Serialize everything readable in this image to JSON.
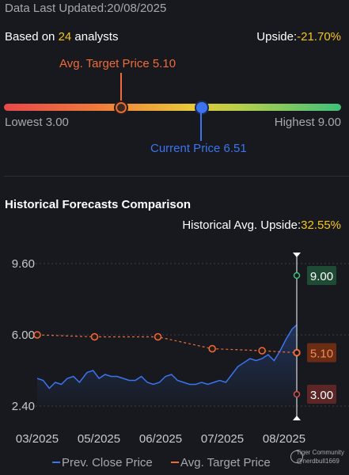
{
  "header": {
    "updated_label": "Data Last Updated:",
    "updated_date": "20/08/2025",
    "analysts_prefix": "Based on ",
    "analysts_count": "24",
    "analysts_suffix": " analysts",
    "upside_label": "Upside:",
    "upside_value": "-21.70%"
  },
  "range": {
    "avg_target_label": "Avg. Target Price 5.10",
    "lowest_label": "Lowest 3.00",
    "highest_label": "Highest 9.00",
    "current_label": "Current Price 6.51",
    "low": 3.0,
    "high": 9.0,
    "avg_target": 5.1,
    "current": 6.51
  },
  "history": {
    "title": "Historical Forecasts Comparison",
    "upside_label": "Historical Avg. Upside:",
    "upside_value": "32.55%"
  },
  "colors": {
    "close": "#3b74ee",
    "target": "#f06b3a",
    "high": "#3fc07a",
    "low": "#d0524a",
    "accent": "#f5c518"
  },
  "chart_data": {
    "type": "line",
    "y_ticks": [
      "9.60",
      "6.00",
      "2.40"
    ],
    "ylim": [
      2.4,
      9.6
    ],
    "x_ticks": [
      "03/2025",
      "05/2025",
      "06/2025",
      "07/2025",
      "08/2025"
    ],
    "series": [
      {
        "name": "Prev. Close Price",
        "x": [
          "2025-03-01",
          "2025-03-05",
          "2025-03-09",
          "2025-03-13",
          "2025-03-17",
          "2025-03-21",
          "2025-03-25",
          "2025-03-29",
          "2025-04-03",
          "2025-04-07",
          "2025-04-11",
          "2025-04-15",
          "2025-04-19",
          "2025-04-23",
          "2025-04-27",
          "2025-05-01",
          "2025-05-05",
          "2025-05-09",
          "2025-05-13",
          "2025-05-17",
          "2025-05-21",
          "2025-05-25",
          "2025-05-29",
          "2025-06-02",
          "2025-06-06",
          "2025-06-10",
          "2025-06-14",
          "2025-06-18",
          "2025-06-22",
          "2025-06-26",
          "2025-06-30",
          "2025-07-04",
          "2025-07-08",
          "2025-07-12",
          "2025-07-16",
          "2025-07-20",
          "2025-07-24",
          "2025-07-28",
          "2025-08-01",
          "2025-08-05",
          "2025-08-09",
          "2025-08-13",
          "2025-08-17",
          "2025-08-20"
        ],
        "values": [
          3.8,
          3.7,
          3.3,
          3.6,
          3.5,
          3.8,
          3.9,
          3.6,
          4.1,
          4.2,
          3.8,
          4.0,
          3.9,
          3.9,
          3.8,
          3.7,
          3.7,
          3.9,
          3.6,
          3.5,
          3.6,
          3.9,
          4.0,
          3.7,
          3.6,
          3.5,
          3.5,
          3.6,
          3.5,
          3.6,
          3.7,
          3.6,
          4.0,
          4.4,
          4.6,
          4.8,
          4.7,
          4.8,
          5.0,
          4.7,
          5.2,
          5.8,
          6.3,
          6.51
        ]
      },
      {
        "name": "Avg. Target Price",
        "x": [
          "2025-03-01",
          "2025-04-08",
          "2025-05-20",
          "2025-06-25",
          "2025-07-28",
          "2025-08-20"
        ],
        "values": [
          6.0,
          5.9,
          5.9,
          5.3,
          5.2,
          5.1
        ]
      }
    ],
    "forecast_high": 9.0,
    "forecast_avg": 5.1,
    "forecast_low": 3.0,
    "legend": [
      "Prev. Close Price",
      "Avg. Target Price"
    ],
    "legend_position": "bottom"
  },
  "watermark": {
    "brand": "Tiger Community",
    "user": "@nerdbull1669"
  }
}
